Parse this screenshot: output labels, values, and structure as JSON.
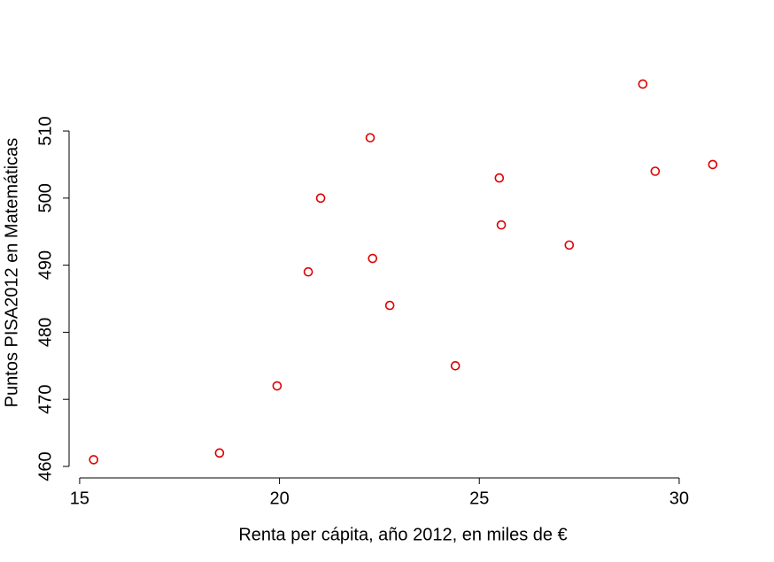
{
  "chart_data": {
    "type": "scatter",
    "x_label": "Renta per cápita, año 2012, en miles de €",
    "y_label": "Puntos PISA2012 en Matemáticas",
    "x": [
      15.35,
      18.5,
      19.94,
      20.72,
      21.03,
      22.27,
      22.33,
      22.76,
      24.4,
      25.5,
      25.55,
      27.25,
      29.09,
      29.4,
      30.84
    ],
    "values": [
      461,
      462,
      472,
      489,
      500,
      509,
      491,
      484,
      475,
      503,
      496,
      493,
      517,
      504,
      505
    ],
    "color": "#dd0000",
    "xlim": [
      14.78,
      31.42
    ],
    "ylim": [
      458.76,
      519.24
    ],
    "xticks": [
      15,
      20,
      25,
      30
    ],
    "yticks": [
      460,
      470,
      480,
      490,
      500,
      510
    ]
  }
}
